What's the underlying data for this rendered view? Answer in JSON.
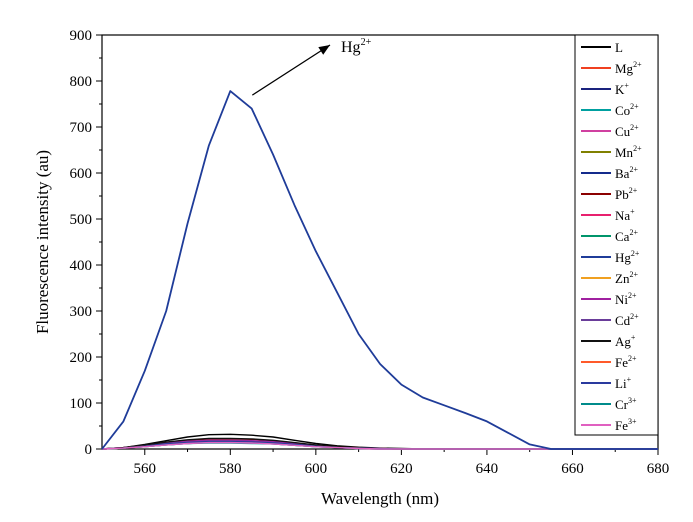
{
  "chart_data": {
    "type": "line",
    "title": "",
    "xlabel": "Wavelength (nm)",
    "ylabel": "Fluorescence intensity (au)",
    "xlim": [
      550,
      680
    ],
    "ylim": [
      0,
      900
    ],
    "xticks": [
      560,
      580,
      600,
      620,
      640,
      660,
      680
    ],
    "yticks": [
      0,
      100,
      200,
      300,
      400,
      500,
      600,
      700,
      800,
      900
    ],
    "x": [
      550,
      555,
      560,
      565,
      570,
      575,
      580,
      585,
      590,
      595,
      600,
      605,
      610,
      615,
      620,
      625,
      630,
      635,
      640,
      645,
      650,
      655,
      660,
      665,
      670,
      675,
      680
    ],
    "annotation": {
      "base": "Hg",
      "sup": "2+"
    },
    "series": [
      {
        "name": "L",
        "base": "L",
        "sup": "",
        "color": "#000000",
        "values": [
          0,
          3,
          10,
          18,
          26,
          31,
          32,
          30,
          26,
          19,
          12,
          7,
          4,
          2,
          1,
          0,
          0,
          0,
          0,
          0,
          0,
          0,
          0,
          0,
          0,
          0,
          0
        ]
      },
      {
        "name": "Mg2+",
        "base": "Mg",
        "sup": "2+",
        "color": "#f04020",
        "values": [
          0,
          2,
          7,
          12,
          16,
          18,
          18,
          17,
          15,
          11,
          7,
          4,
          2,
          1,
          0,
          0,
          0,
          0,
          0,
          0,
          0,
          0,
          0,
          0,
          0,
          0,
          0
        ]
      },
      {
        "name": "K+",
        "base": "K",
        "sup": "+",
        "color": "#1a237e",
        "values": [
          0,
          2,
          6,
          11,
          15,
          17,
          17,
          16,
          14,
          10,
          6,
          3,
          2,
          1,
          0,
          0,
          0,
          0,
          0,
          0,
          0,
          0,
          0,
          0,
          0,
          0,
          0
        ]
      },
      {
        "name": "Co2+",
        "base": "Co",
        "sup": "2+",
        "color": "#00a0a0",
        "values": [
          0,
          2,
          5,
          9,
          12,
          13,
          13,
          12,
          11,
          8,
          5,
          3,
          1,
          0,
          0,
          0,
          0,
          0,
          0,
          0,
          0,
          0,
          0,
          0,
          0,
          0,
          0
        ]
      },
      {
        "name": "Cu2+",
        "base": "Cu",
        "sup": "2+",
        "color": "#d040a0",
        "values": [
          0,
          2,
          5,
          9,
          12,
          14,
          14,
          13,
          11,
          8,
          5,
          3,
          1,
          0,
          0,
          0,
          0,
          0,
          0,
          0,
          0,
          0,
          0,
          0,
          0,
          0,
          0
        ]
      },
      {
        "name": "Mn2+",
        "base": "Mn",
        "sup": "2+",
        "color": "#808000",
        "values": [
          0,
          2,
          6,
          10,
          13,
          15,
          15,
          14,
          12,
          9,
          6,
          3,
          2,
          1,
          0,
          0,
          0,
          0,
          0,
          0,
          0,
          0,
          0,
          0,
          0,
          0,
          0
        ]
      },
      {
        "name": "Ba2+",
        "base": "Ba",
        "sup": "2+",
        "color": "#142b8c",
        "values": [
          0,
          2,
          6,
          10,
          14,
          16,
          16,
          15,
          13,
          9,
          6,
          3,
          2,
          1,
          0,
          0,
          0,
          0,
          0,
          0,
          0,
          0,
          0,
          0,
          0,
          0,
          0
        ]
      },
      {
        "name": "Pb2+",
        "base": "Pb",
        "sup": "2+",
        "color": "#8b0000",
        "values": [
          0,
          3,
          8,
          14,
          19,
          22,
          22,
          21,
          18,
          13,
          8,
          5,
          3,
          1,
          0,
          0,
          0,
          0,
          0,
          0,
          0,
          0,
          0,
          0,
          0,
          0,
          0
        ]
      },
      {
        "name": "Na+",
        "base": "Na",
        "sup": "+",
        "color": "#e8206e",
        "values": [
          0,
          2,
          7,
          12,
          16,
          18,
          18,
          17,
          15,
          11,
          7,
          4,
          2,
          1,
          0,
          0,
          0,
          0,
          0,
          0,
          0,
          0,
          0,
          0,
          0,
          0,
          0
        ]
      },
      {
        "name": "Ca2+",
        "base": "Ca",
        "sup": "2+",
        "color": "#00956b",
        "values": [
          0,
          2,
          6,
          11,
          14,
          16,
          16,
          15,
          13,
          10,
          6,
          3,
          2,
          1,
          0,
          0,
          0,
          0,
          0,
          0,
          0,
          0,
          0,
          0,
          0,
          0,
          0
        ]
      },
      {
        "name": "Hg2+",
        "base": "Hg",
        "sup": "2+",
        "color": "#1f3c99",
        "values": [
          0,
          60,
          170,
          300,
          490,
          660,
          778,
          740,
          640,
          530,
          430,
          340,
          250,
          185,
          140,
          112,
          95,
          78,
          60,
          35,
          10,
          0,
          0,
          0,
          0,
          0,
          0
        ]
      },
      {
        "name": "Zn2+",
        "base": "Zn",
        "sup": "2+",
        "color": "#f0a020",
        "values": [
          0,
          2,
          6,
          10,
          13,
          15,
          15,
          14,
          12,
          9,
          6,
          3,
          2,
          1,
          0,
          0,
          0,
          0,
          0,
          0,
          0,
          0,
          0,
          0,
          0,
          0,
          0
        ]
      },
      {
        "name": "Ni2+",
        "base": "Ni",
        "sup": "2+",
        "color": "#a020a0",
        "values": [
          0,
          3,
          8,
          13,
          17,
          19,
          19,
          18,
          16,
          12,
          8,
          4,
          2,
          1,
          0,
          0,
          0,
          0,
          0,
          0,
          0,
          0,
          0,
          0,
          0,
          0,
          0
        ]
      },
      {
        "name": "Cd2+",
        "base": "Cd",
        "sup": "2+",
        "color": "#6a3d9a",
        "values": [
          0,
          2,
          7,
          12,
          15,
          17,
          17,
          16,
          14,
          10,
          7,
          4,
          2,
          1,
          0,
          0,
          0,
          0,
          0,
          0,
          0,
          0,
          0,
          0,
          0,
          0,
          0
        ]
      },
      {
        "name": "Ag+",
        "base": "Ag",
        "sup": "+",
        "color": "#111111",
        "values": [
          0,
          3,
          9,
          15,
          20,
          23,
          23,
          22,
          19,
          14,
          9,
          5,
          3,
          1,
          0,
          0,
          0,
          0,
          0,
          0,
          0,
          0,
          0,
          0,
          0,
          0,
          0
        ]
      },
      {
        "name": "Fe2+",
        "base": "Fe",
        "sup": "2+",
        "color": "#ff5a2a",
        "values": [
          0,
          2,
          6,
          10,
          13,
          15,
          15,
          14,
          12,
          9,
          6,
          3,
          2,
          1,
          0,
          0,
          0,
          0,
          0,
          0,
          0,
          0,
          0,
          0,
          0,
          0,
          0
        ]
      },
      {
        "name": "Li+",
        "base": "Li",
        "sup": "+",
        "color": "#2a3a9e",
        "values": [
          0,
          2,
          6,
          11,
          14,
          16,
          16,
          15,
          13,
          10,
          6,
          3,
          2,
          1,
          0,
          0,
          0,
          0,
          0,
          0,
          0,
          0,
          0,
          0,
          0,
          0,
          0
        ]
      },
      {
        "name": "Cr3+",
        "base": "Cr",
        "sup": "3+",
        "color": "#008b8b",
        "values": [
          0,
          2,
          5,
          9,
          12,
          14,
          14,
          13,
          11,
          8,
          5,
          3,
          1,
          0,
          0,
          0,
          0,
          0,
          0,
          0,
          0,
          0,
          0,
          0,
          0,
          0,
          0
        ]
      },
      {
        "name": "Fe3+",
        "base": "Fe",
        "sup": "3+",
        "color": "#e060c0",
        "values": [
          0,
          2,
          5,
          9,
          12,
          14,
          14,
          13,
          11,
          8,
          5,
          3,
          1,
          0,
          0,
          0,
          0,
          0,
          0,
          0,
          0,
          0,
          0,
          0,
          0,
          0,
          0
        ]
      }
    ]
  }
}
